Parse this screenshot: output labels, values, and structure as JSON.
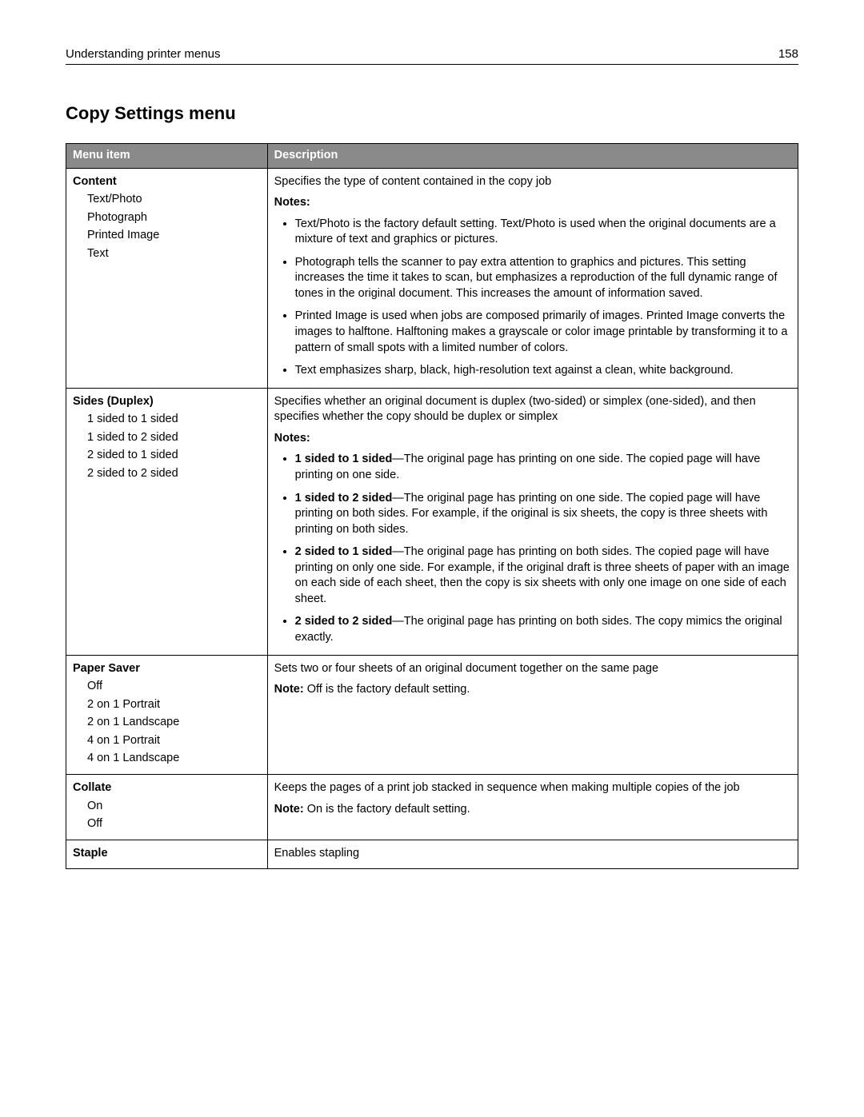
{
  "header": {
    "title": "Understanding printer menus",
    "pageNumber": "158"
  },
  "section": {
    "title": "Copy Settings menu"
  },
  "table": {
    "columns": [
      "Menu item",
      "Description"
    ],
    "rows": {
      "content": {
        "title": "Content",
        "options": [
          "Text/Photo",
          "Photograph",
          "Printed Image",
          "Text"
        ],
        "lead": "Specifies the type of content contained in the copy job",
        "notesLabel": "Notes:",
        "notes": [
          "Text/Photo is the factory default setting. Text/Photo is used when the original documents are a mixture of text and graphics or pictures.",
          "Photograph tells the scanner to pay extra attention to graphics and pictures. This setting increases the time it takes to scan, but emphasizes a reproduction of the full dynamic range of tones in the original document. This increases the amount of information saved.",
          "Printed Image is used when jobs are composed primarily of images. Printed Image converts the images to halftone. Halftoning makes a grayscale or color image printable by transforming it to a pattern of small spots with a limited number of colors.",
          "Text emphasizes sharp, black, high-resolution text against a clean, white background."
        ]
      },
      "sides": {
        "title": "Sides (Duplex)",
        "options": [
          "1 sided to 1 sided",
          "1 sided to 2 sided",
          "2 sided to 1 sided",
          "2 sided to 2 sided"
        ],
        "lead": "Specifies whether an original document is duplex (two-sided) or simplex (one-sided), and then specifies whether the copy should be duplex or simplex",
        "notesLabel": "Notes:",
        "notes": [
          {
            "bold": "1 sided to 1 sided",
            "text": "—The original page has printing on one side. The copied page will have printing on one side."
          },
          {
            "bold": "1 sided to 2 sided",
            "text": "—The original page has printing on one side. The copied page will have printing on both sides. For example, if the original is six sheets, the copy is three sheets with printing on both sides."
          },
          {
            "bold": "2 sided to 1 sided",
            "text": "—The original page has printing on both sides. The copied page will have printing on only one side. For example, if the original draft is three sheets of paper with an image on each side of each sheet, then the copy is six sheets with only one image on one side of each sheet."
          },
          {
            "bold": "2 sided to 2 sided",
            "text": "—The original page has printing on both sides. The copy mimics the original exactly."
          }
        ]
      },
      "paperSaver": {
        "title": "Paper Saver",
        "options": [
          "Off",
          "2 on 1 Portrait",
          "2 on 1 Landscape",
          "4 on 1 Portrait",
          "4 on 1 Landscape"
        ],
        "lead": "Sets two or four sheets of an original document together on the same page",
        "noteLabel": "Note:",
        "noteText": " Off is the factory default setting."
      },
      "collate": {
        "title": "Collate",
        "options": [
          "On",
          "Off"
        ],
        "lead": "Keeps the pages of a print job stacked in sequence when making multiple copies of the job",
        "noteLabel": "Note:",
        "noteText": " On is the factory default setting."
      },
      "staple": {
        "title": "Staple",
        "lead": "Enables stapling"
      }
    }
  }
}
